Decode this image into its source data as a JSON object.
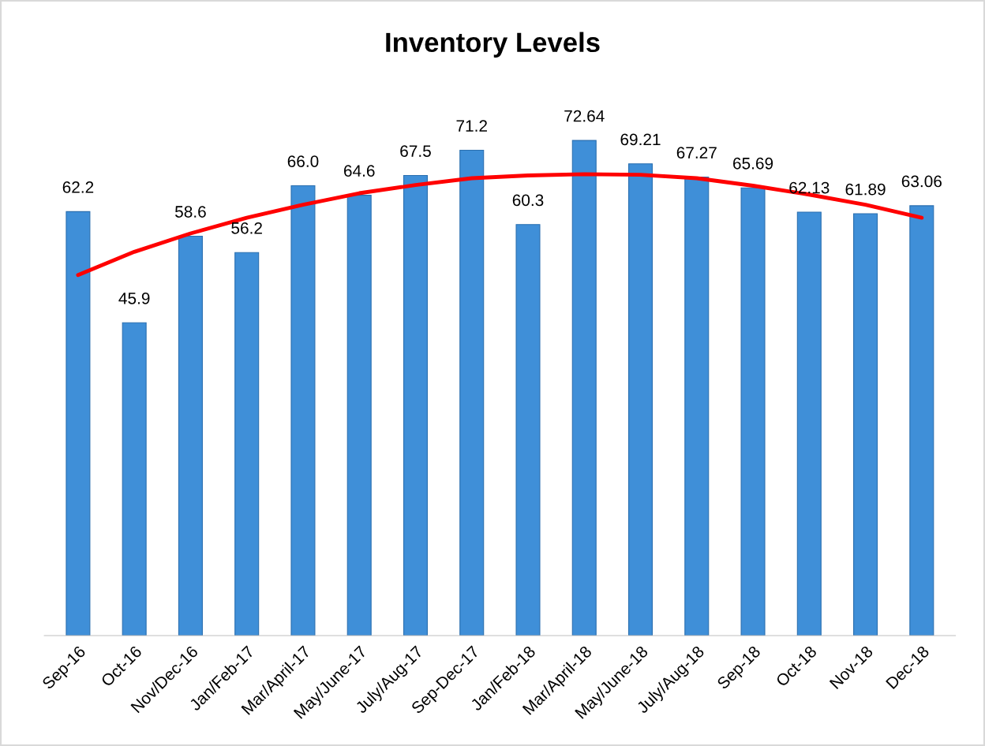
{
  "chart_data": {
    "type": "bar",
    "title": "Inventory Levels",
    "categories": [
      "Sep-16",
      "Oct-16",
      "Nov/Dec-16",
      "Jan/Feb-17",
      "Mar/April-17",
      "May/June-17",
      "July/Aug-17",
      "Sep-Dec-17",
      "Jan/Feb-18",
      "Mar/April-18",
      "May/June-18",
      "July/Aug-18",
      "Sep-18",
      "Oct-18",
      "Nov-18",
      "Dec-18"
    ],
    "series": [
      {
        "color": "#3f8fd8",
        "values": [
          62.2,
          45.9,
          58.6,
          56.2,
          66.0,
          64.6,
          67.5,
          71.2,
          60.3,
          72.64,
          69.21,
          67.27,
          65.69,
          62.13,
          61.89,
          63.06
        ],
        "value_labels": [
          "62.2",
          "45.9",
          "58.6",
          "56.2",
          "66.0",
          "64.6",
          "67.5",
          "71.2",
          "60.3",
          "72.64",
          "69.21",
          "67.27",
          "65.69",
          "62.13",
          "61.89",
          "63.06"
        ]
      },
      {
        "type": "line",
        "color": "#ff0000",
        "values": [
          52.9,
          56.3,
          59.0,
          61.3,
          63.2,
          64.9,
          66.1,
          67.1,
          67.5,
          67.7,
          67.6,
          67.1,
          66.0,
          64.7,
          63.2,
          61.3
        ]
      }
    ],
    "tick_labels": "x",
    "grid": false
  }
}
